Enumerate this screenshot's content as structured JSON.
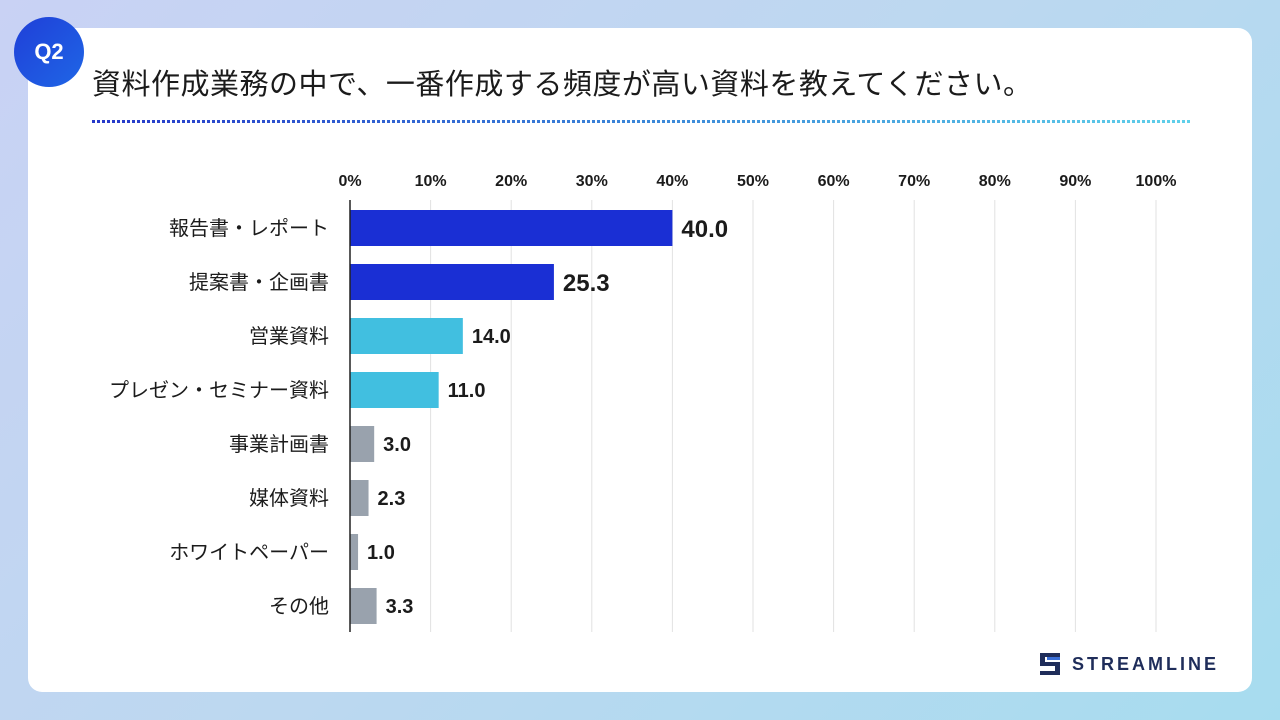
{
  "badge": "Q2",
  "question": "資料作成業務の中で、一番作成する頻度が高い資料を教えてください。",
  "brand": "STREAMLINE",
  "colors": {
    "top": "#1a2fd4",
    "mid": "#41bfe0",
    "low": "#99a2ad",
    "grid": "#e2e2e2",
    "axis": "#222222"
  },
  "chart_data": {
    "type": "bar",
    "orientation": "horizontal",
    "title": "",
    "xlim": [
      0,
      100
    ],
    "x_ticks": [
      "0%",
      "10%",
      "20%",
      "30%",
      "40%",
      "50%",
      "60%",
      "70%",
      "80%",
      "90%",
      "100%"
    ],
    "categories": [
      "報告書・レポート",
      "提案書・企画書",
      "営業資料",
      "プレゼン・セミナー資料",
      "事業計画書",
      "媒体資料",
      "ホワイトペーパー",
      "その他"
    ],
    "values": [
      40.0,
      25.3,
      14.0,
      11.0,
      3.0,
      2.3,
      1.0,
      3.3
    ],
    "value_labels": [
      "40.0",
      "25.3",
      "14.0",
      "11.0",
      "3.0",
      "2.3",
      "1.0",
      "3.3"
    ],
    "color_groups": [
      "top",
      "top",
      "mid",
      "mid",
      "low",
      "low",
      "low",
      "low"
    ],
    "grid": true
  }
}
